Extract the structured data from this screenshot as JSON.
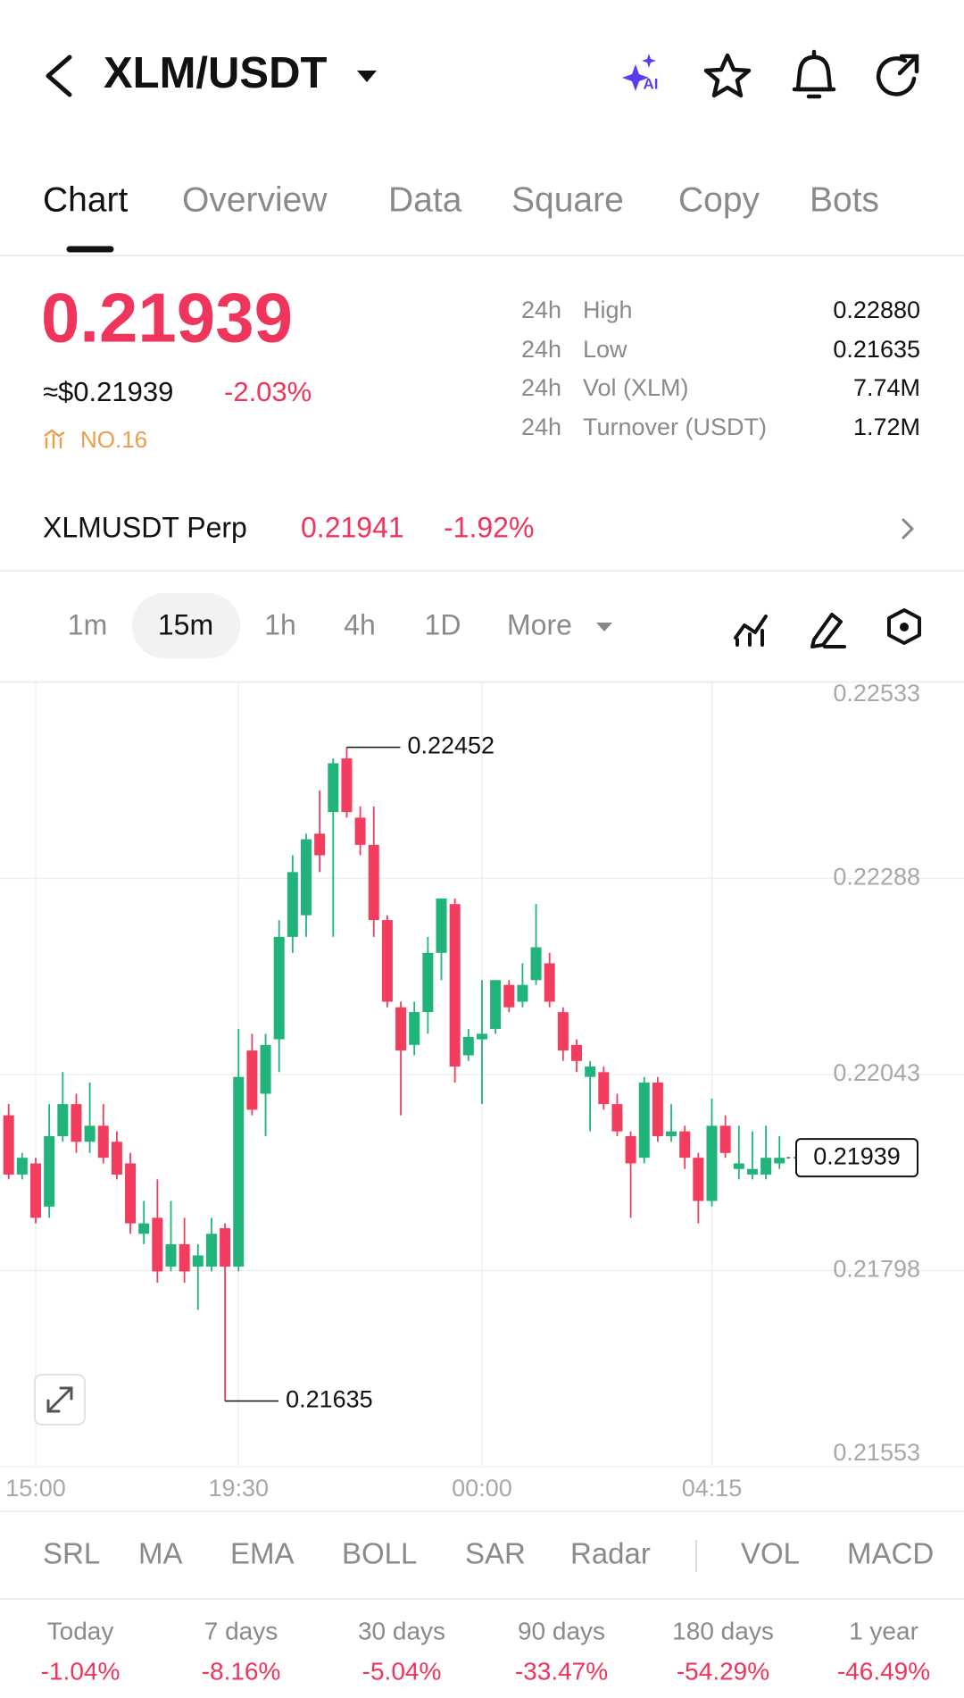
{
  "header": {
    "title": "XLM/USDT",
    "ai_label": "AI"
  },
  "tabs": [
    "Chart",
    "Overview",
    "Data",
    "Square",
    "Copy",
    "Bots"
  ],
  "price": {
    "last": "0.21939",
    "usd": "≈$0.21939",
    "change": "-2.03%",
    "rank": "NO.16"
  },
  "stats": [
    {
      "period": "24h",
      "label": "High",
      "value": "0.22880"
    },
    {
      "period": "24h",
      "label": "Low",
      "value": "0.21635"
    },
    {
      "period": "24h",
      "label": "Vol (XLM)",
      "value": "7.74M"
    },
    {
      "period": "24h",
      "label": "Turnover (USDT)",
      "value": "1.72M"
    }
  ],
  "perp": {
    "name": "XLMUSDT Perp",
    "price": "0.21941",
    "change": "-1.92%"
  },
  "intervals": [
    "1m",
    "15m",
    "1h",
    "4h",
    "1D",
    "More"
  ],
  "chart_data": {
    "type": "candlestick",
    "categories": [
      null,
      null,
      "15:00",
      null,
      null,
      null,
      null,
      null,
      null,
      null,
      null,
      null,
      null,
      null,
      null,
      null,
      null,
      "19:30",
      null,
      null,
      null,
      null,
      null,
      null,
      null,
      null,
      null,
      null,
      null,
      null,
      null,
      null,
      null,
      null,
      null,
      "00:00",
      null,
      null,
      null,
      null,
      null,
      null,
      null,
      null,
      null,
      null,
      null,
      null,
      null,
      null,
      null,
      null,
      "04:15",
      null,
      null,
      null,
      null,
      null
    ],
    "open": [
      0.21992,
      0.21918,
      0.21932,
      0.21878,
      0.21966,
      0.22006,
      0.21959,
      0.21979,
      0.21959,
      0.21932,
      0.21844,
      0.21864,
      0.21803,
      0.21831,
      0.21803,
      0.21803,
      0.21851,
      0.21803,
      0.22073,
      0.22019,
      0.22087,
      0.22215,
      0.22242,
      0.22344,
      0.22371,
      0.22438,
      0.22364,
      0.2233,
      0.22236,
      0.22127,
      0.2208,
      0.22121,
      0.22195,
      0.22256,
      0.22067,
      0.22087,
      0.221,
      0.22155,
      0.22134,
      0.22161,
      0.22182,
      0.22121,
      0.2208,
      0.2204,
      0.22046,
      0.22006,
      0.21966,
      0.21939,
      0.22033,
      0.21966,
      0.21972,
      0.21939,
      0.21885,
      0.21979,
      0.21925,
      0.21918,
      0.21918,
      0.21932
    ],
    "high": [
      0.22006,
      0.21945,
      0.21939,
      0.22006,
      0.22046,
      0.22019,
      0.22033,
      0.22006,
      0.21972,
      0.21945,
      0.21885,
      0.21912,
      0.21885,
      0.21864,
      0.21831,
      0.21864,
      0.21857,
      0.221,
      0.22094,
      0.22094,
      0.22236,
      0.22317,
      0.22344,
      0.22398,
      0.22438,
      0.22452,
      0.22378,
      0.22378,
      0.22242,
      0.22134,
      0.22134,
      0.22215,
      0.22263,
      0.22263,
      0.221,
      0.22161,
      0.22161,
      0.22161,
      0.22182,
      0.22256,
      0.22195,
      0.22127,
      0.22087,
      0.2206,
      0.22053,
      0.22019,
      0.21972,
      0.2204,
      0.2204,
      0.22006,
      0.21979,
      0.21945,
      0.22013,
      0.21992,
      0.21979,
      0.21972,
      0.21979,
      0.21966
    ],
    "low": [
      0.21912,
      0.21912,
      0.21857,
      0.21864,
      0.21959,
      0.21945,
      0.21945,
      0.21932,
      0.21912,
      0.21844,
      0.21831,
      0.21783,
      0.21797,
      0.21783,
      0.21749,
      0.21797,
      0.21635,
      0.21797,
      0.21992,
      0.21966,
      0.22046,
      0.22195,
      0.22215,
      0.22296,
      0.22215,
      0.22364,
      0.22317,
      0.22215,
      0.22127,
      0.21992,
      0.22067,
      0.22094,
      0.22161,
      0.22033,
      0.2206,
      0.22006,
      0.22094,
      0.22121,
      0.22127,
      0.22155,
      0.22127,
      0.2206,
      0.22046,
      0.21972,
      0.21999,
      0.21966,
      0.21864,
      0.21932,
      0.21959,
      0.21959,
      0.21925,
      0.21857,
      0.21878,
      0.21939,
      0.21912,
      0.21912,
      0.21912,
      0.21925
    ],
    "close": [
      0.21918,
      0.21939,
      0.21864,
      0.21966,
      0.22006,
      0.21959,
      0.21979,
      0.21939,
      0.21918,
      0.21857,
      0.21857,
      0.21797,
      0.21831,
      0.21797,
      0.21817,
      0.21844,
      0.21803,
      0.2204,
      0.21999,
      0.2208,
      0.22215,
      0.22296,
      0.22337,
      0.22317,
      0.22432,
      0.22371,
      0.2233,
      0.22236,
      0.22134,
      0.22073,
      0.22121,
      0.22195,
      0.22263,
      0.22053,
      0.2209,
      0.22094,
      0.22161,
      0.22127,
      0.22155,
      0.22202,
      0.22134,
      0.22073,
      0.2206,
      0.22053,
      0.22006,
      0.21972,
      0.21932,
      0.22033,
      0.21966,
      0.21972,
      0.21939,
      0.21885,
      0.21979,
      0.21945,
      0.21932,
      0.21925,
      0.21939,
      0.21939
    ],
    "ylim": [
      0.21553,
      0.22533
    ],
    "yticks": [
      0.22533,
      0.22288,
      0.22043,
      0.21798,
      0.21553
    ],
    "up_color": "#20b47a",
    "down_color": "#f23d5e",
    "grid": true
  },
  "indicators": [
    "SRL",
    "MA",
    "EMA",
    "BOLL",
    "SAR",
    "Radar",
    "VOL",
    "MACD"
  ],
  "performance": [
    {
      "period": "Today",
      "change": "-1.04%"
    },
    {
      "period": "7 days",
      "change": "-8.16%"
    },
    {
      "period": "30 days",
      "change": "-5.04%"
    },
    {
      "period": "90 days",
      "change": "-33.47%"
    },
    {
      "period": "180 days",
      "change": "-54.29%"
    },
    {
      "period": "1 year",
      "change": "-46.49%"
    }
  ]
}
